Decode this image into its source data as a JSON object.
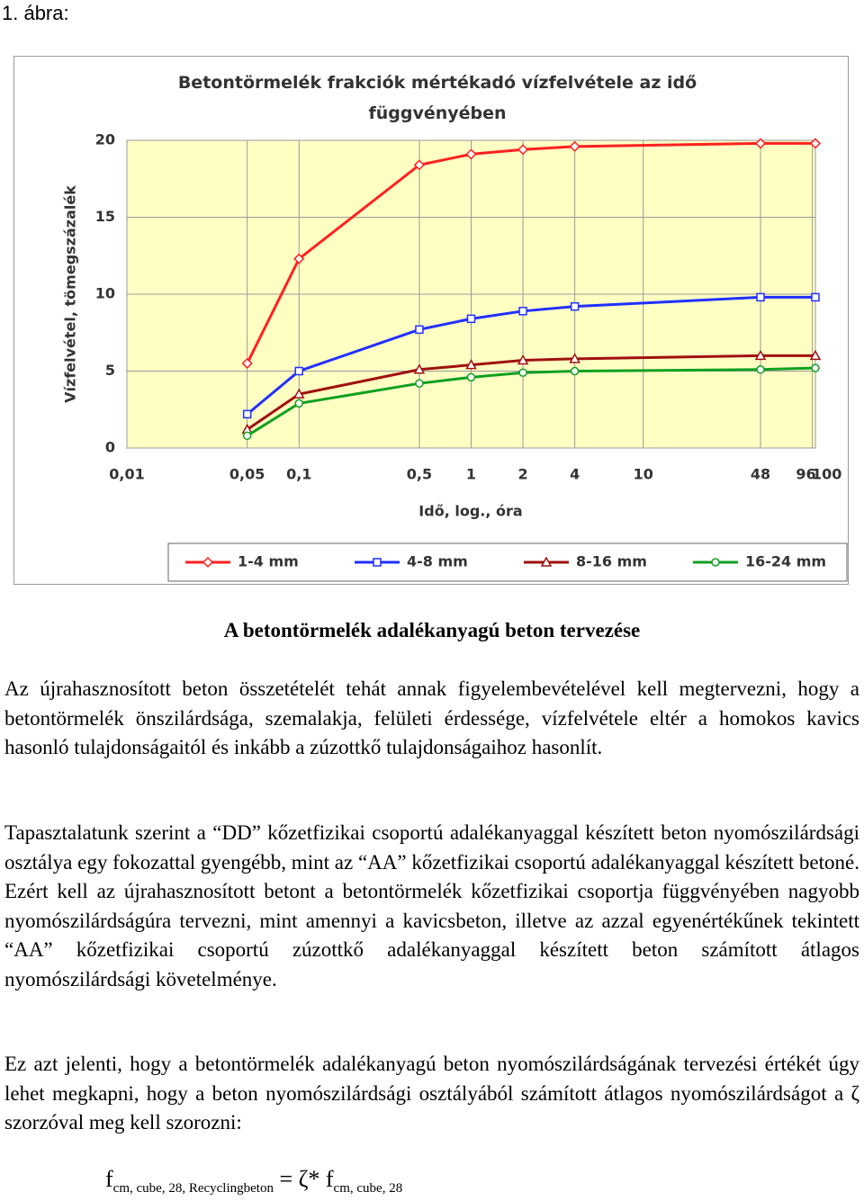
{
  "figure_label": "1. ábra:",
  "chart_data": {
    "type": "line",
    "title": "Betontörmelék frakciók mértékadó vízfelvétele az idő függvényében",
    "xlabel": "Idő, log., óra",
    "ylabel": "Vízfelvétel, tömegszázalék",
    "xscale": "log",
    "x": [
      0.05,
      0.1,
      0.5,
      1,
      2,
      4,
      48,
      100
    ],
    "xlim": [
      0.01,
      100
    ],
    "xticks": [
      {
        "value": 0.01,
        "label": "0,01"
      },
      {
        "value": 0.05,
        "label": "0,05"
      },
      {
        "value": 0.1,
        "label": "0,1"
      },
      {
        "value": 0.5,
        "label": "0,5"
      },
      1,
      2,
      4,
      10,
      48,
      96,
      100
    ],
    "ylim": [
      0,
      20
    ],
    "yticks": [
      0,
      5,
      10,
      15,
      20
    ],
    "grid": true,
    "legend": "bottom",
    "series": [
      {
        "name": "1-4 mm",
        "color": "#ff2020",
        "marker": "diamond",
        "values": [
          5.5,
          12.3,
          18.4,
          19.1,
          19.4,
          19.6,
          19.8,
          19.8
        ]
      },
      {
        "name": "4-8 mm",
        "color": "#2030ff",
        "marker": "square",
        "values": [
          2.2,
          5.0,
          7.7,
          8.4,
          8.9,
          9.2,
          9.8,
          9.8
        ]
      },
      {
        "name": "8-16 mm",
        "color": "#a01010",
        "marker": "triangle",
        "values": [
          1.2,
          3.5,
          5.1,
          5.4,
          5.7,
          5.8,
          6.0,
          6.0
        ]
      },
      {
        "name": "16-24 mm",
        "color": "#10a020",
        "marker": "circle",
        "values": [
          0.8,
          2.9,
          4.2,
          4.6,
          4.9,
          5.0,
          5.1,
          5.2
        ]
      }
    ]
  },
  "heading": "A betontörmelék adalékanyagú beton tervezése",
  "paragraphs": [
    "Az újrahasznosított beton összetételét tehát annak figyelembevételével kell megtervezni, hogy a betontörmelék önszilárdsága, szemalakja, felületi érdessége, vízfelvétele eltér a homokos kavics hasonló tulajdonságaitól és inkább a zúzottkő tulajdonságaihoz hasonlít.",
    "Tapasztalatunk szerint a “DD” kőzetfizikai csoportú adalékanyaggal készített beton nyomószilárdsági osztálya egy fokozattal gyengébb, mint az “AA” kőzetfizikai csoportú adalékanyaggal készített betoné. Ezért kell az újrahasznosított betont a betontörmelék kőzetfizikai csoportja függvényében nagyobb nyomószilárdságúra tervezni, mint amennyi a kavicsbeton, illetve az azzal egyenértékűnek tekintett “AA” kőzetfizikai csoportú zúzottkő adalékanyaggal készített beton számított átlagos nyomószilárdsági követelménye.",
    "Ez azt jelenti, hogy a betontörmelék adalékanyagú beton nyomószilárdságának tervezési értékét úgy lehet megkapni, hogy a beton nyomószilárdsági osztályából számított átlagos nyomószilárdságot a ζ szorzóval meg kell szorozni:"
  ],
  "formula": {
    "lhs": "f",
    "lhs_sub": "cm, cube, 28, Recyclingbeton",
    "rhs": "= ζ* f",
    "rhs_sub": "cm, cube, 28"
  }
}
